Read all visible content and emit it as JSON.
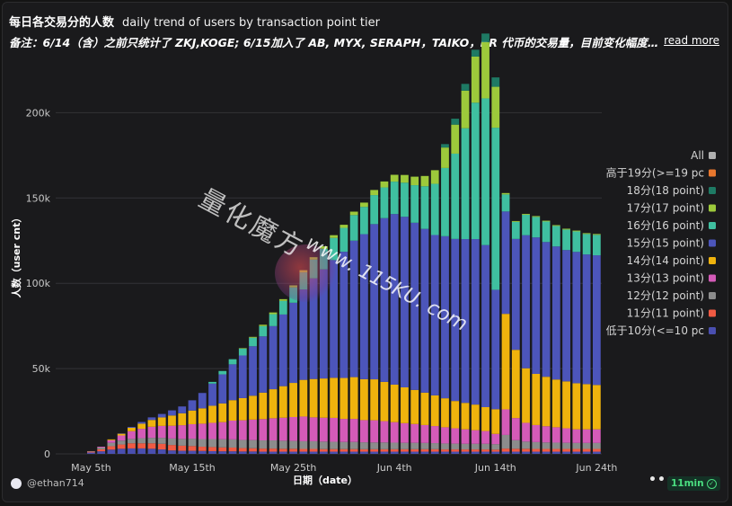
{
  "header": {
    "title": "每日各交易分的人数",
    "subtitle": "daily trend of users by transaction point tier",
    "note": "备注：6/14（含）之前只统计了 ZKJ,KOGE; 6/15加入了 AB, MYX, SERAPH，TAIKO，BR 代币的交易量，目前变化幅度较大，",
    "read_more": "read more"
  },
  "footer": {
    "user": "@ethan714",
    "more": "•••",
    "time_badge": "11min"
  },
  "watermark": {
    "cn": "量化魔方",
    "url": "www. 115KU. com"
  },
  "colors": {
    "background": "#1a1a1c",
    "grid": "#333336"
  },
  "chart_data": {
    "type": "bar",
    "stacked": true,
    "xlabel": "日期（date）",
    "ylabel": "人数（user cnt）",
    "ylim": [
      0,
      245000
    ],
    "yticks": [
      "0",
      "50k",
      "100k",
      "150k",
      "200k"
    ],
    "ytick_values": [
      0,
      50000,
      100000,
      150000,
      200000
    ],
    "categories": [
      "May 2",
      "May 3",
      "May 4",
      "May 5",
      "May 6",
      "May 7",
      "May 8",
      "May 9",
      "May 10",
      "May 11",
      "May 12",
      "May 13",
      "May 14",
      "May 15",
      "May 16",
      "May 17",
      "May 18",
      "May 19",
      "May 20",
      "May 21",
      "May 22",
      "May 23",
      "May 24",
      "May 25",
      "May 26",
      "May 27",
      "May 28",
      "May 29",
      "May 30",
      "May 31",
      "Jun 1",
      "Jun 2",
      "Jun 3",
      "Jun 4",
      "Jun 5",
      "Jun 6",
      "Jun 7",
      "Jun 8",
      "Jun 9",
      "Jun 10",
      "Jun 11",
      "Jun 12",
      "Jun 13",
      "Jun 14",
      "Jun 15",
      "Jun 16",
      "Jun 17",
      "Jun 18",
      "Jun 19",
      "Jun 20",
      "Jun 21",
      "Jun 22",
      "Jun 23",
      "Jun 24"
    ],
    "xtick_labels": [
      "May 5th",
      "May 15th",
      "May 25th",
      "Jun 4th",
      "Jun 14th",
      "Jun 24th"
    ],
    "xtick_categories": [
      "May 5",
      "May 15",
      "May 25",
      "Jun 4",
      "Jun 14",
      "Jun 24"
    ],
    "legend_position": "right",
    "legend": [
      "All",
      "高于19分(>=19 pc",
      "18分(18 point)",
      "17分(17 point)",
      "16分(16 point)",
      "15分(15 point)",
      "14分(14 point)",
      "13分(13 point)",
      "12分(12 point)",
      "11分(11 point)",
      "低于10分(<=10 pc"
    ],
    "legend_colors": [
      "#b0b0b0",
      "#e8772e",
      "#1e7a64",
      "#9dc93b",
      "#3fbfa0",
      "#4c55ba",
      "#efb30d",
      "#d45bb8",
      "#8c8c8c",
      "#f05a43",
      "#4a4fb0"
    ],
    "series": [
      {
        "name": "低于10分(<=10 pc",
        "color": "#4a4fb0",
        "values": [
          0,
          0,
          0,
          800,
          1500,
          2500,
          3000,
          3200,
          3200,
          3000,
          2600,
          2000,
          1800,
          1800,
          1700,
          1600,
          1500,
          1500,
          1400,
          1400,
          1300,
          1300,
          1300,
          1300,
          1300,
          1300,
          1300,
          1300,
          1300,
          1300,
          1300,
          1300,
          1300,
          1300,
          1300,
          1300,
          1300,
          1300,
          1300,
          1300,
          1300,
          1300,
          1300,
          1300,
          1300,
          1300,
          1300,
          1300,
          1300,
          1300,
          1300,
          1300,
          1300,
          1300
        ]
      },
      {
        "name": "11分(11 point)",
        "color": "#f05a43",
        "values": [
          0,
          0,
          0,
          500,
          1200,
          2000,
          2500,
          3000,
          3000,
          3200,
          3300,
          3200,
          3000,
          2800,
          2500,
          2400,
          2300,
          2200,
          2000,
          1900,
          1800,
          1800,
          1700,
          1700,
          1600,
          1600,
          1500,
          1500,
          1500,
          1500,
          1400,
          1400,
          1400,
          1400,
          1400,
          1400,
          1400,
          1400,
          1300,
          1300,
          1300,
          1300,
          1300,
          1200,
          1800,
          1700,
          1700,
          1600,
          1600,
          1600,
          1600,
          1600,
          1600,
          1600
        ]
      },
      {
        "name": "12分(12 point)",
        "color": "#8c8c8c",
        "values": [
          0,
          0,
          0,
          300,
          1000,
          2000,
          2300,
          2600,
          3000,
          3200,
          3500,
          3800,
          4000,
          4300,
          4500,
          4700,
          4800,
          4800,
          4800,
          4800,
          4800,
          4800,
          4700,
          4600,
          4500,
          4500,
          4400,
          4300,
          4200,
          4200,
          4100,
          4000,
          4000,
          3900,
          3800,
          3800,
          3700,
          3600,
          3500,
          3400,
          3300,
          3300,
          3300,
          3200,
          8000,
          5000,
          4200,
          4000,
          3800,
          3700,
          3600,
          3500,
          3500,
          3500
        ]
      },
      {
        "name": "13分(13 point)",
        "color": "#d45bb8",
        "values": [
          0,
          0,
          0,
          0,
          500,
          1500,
          3000,
          4500,
          5500,
          6500,
          7000,
          7500,
          8000,
          8500,
          9000,
          9500,
          10000,
          11000,
          11500,
          12000,
          12500,
          13000,
          13500,
          14000,
          14500,
          14000,
          14000,
          14000,
          13500,
          13500,
          13000,
          13000,
          12500,
          12000,
          11500,
          11000,
          10500,
          10000,
          9500,
          9000,
          8500,
          8000,
          7500,
          6000,
          15000,
          13000,
          11000,
          10000,
          9500,
          9000,
          8500,
          8000,
          8000,
          8000
        ]
      },
      {
        "name": "14分(14 point)",
        "color": "#efb30d",
        "values": [
          0,
          0,
          0,
          0,
          0,
          500,
          1000,
          2000,
          3000,
          4000,
          5000,
          6000,
          7000,
          8000,
          9000,
          10000,
          11000,
          12000,
          13000,
          14000,
          15500,
          17000,
          18500,
          20000,
          21500,
          22500,
          23000,
          23500,
          24000,
          24500,
          24000,
          24000,
          23000,
          22000,
          21000,
          20000,
          19000,
          18000,
          17000,
          16000,
          15500,
          15000,
          14000,
          14500,
          56000,
          40000,
          32000,
          30000,
          29000,
          28000,
          27500,
          27000,
          26500,
          26000
        ]
      },
      {
        "name": "15分(15 point)",
        "color": "#4c55ba",
        "values": [
          0,
          0,
          0,
          0,
          0,
          0,
          200,
          500,
          1000,
          1500,
          2000,
          3000,
          4000,
          6000,
          9000,
          13000,
          17000,
          21000,
          25000,
          29000,
          33000,
          37000,
          42000,
          47000,
          53000,
          59000,
          64000,
          69000,
          74000,
          80000,
          85000,
          91000,
          96000,
          100000,
          100000,
          98000,
          96000,
          94000,
          95000,
          95000,
          96000,
          97000,
          95000,
          70000,
          60000,
          65000,
          78000,
          80000,
          79000,
          78000,
          77000,
          77000,
          76000,
          76000
        ]
      },
      {
        "name": "16分(16 point)",
        "color": "#3fbfa0",
        "values": [
          0,
          0,
          0,
          0,
          0,
          0,
          0,
          0,
          0,
          0,
          0,
          0,
          0,
          0,
          0,
          1000,
          2000,
          3000,
          4000,
          5000,
          6000,
          7000,
          8000,
          9000,
          10000,
          11000,
          12000,
          13000,
          14000,
          15000,
          16000,
          17000,
          18000,
          19000,
          20000,
          22000,
          25000,
          30000,
          40000,
          50000,
          65000,
          80000,
          86000,
          95000,
          10000,
          10000,
          12000,
          12000,
          12000,
          12000,
          12000,
          12000,
          12000,
          12000
        ]
      },
      {
        "name": "17分(17 point)",
        "color": "#9dc93b",
        "values": [
          0,
          0,
          0,
          0,
          0,
          0,
          0,
          0,
          0,
          0,
          0,
          0,
          0,
          0,
          0,
          0,
          0,
          0,
          300,
          500,
          800,
          1000,
          1000,
          1200,
          1300,
          1400,
          1500,
          1600,
          1800,
          2000,
          2500,
          3000,
          3500,
          4000,
          4500,
          5000,
          6000,
          8000,
          12000,
          17000,
          22000,
          27000,
          33000,
          24000,
          800,
          500,
          500,
          500,
          500,
          500,
          500,
          500,
          500,
          500
        ]
      },
      {
        "name": "18分(18 point)",
        "color": "#1e7a64",
        "values": [
          0,
          0,
          0,
          0,
          0,
          0,
          0,
          0,
          0,
          0,
          0,
          0,
          0,
          0,
          0,
          0,
          0,
          0,
          0,
          0,
          0,
          0,
          0,
          0,
          0,
          0,
          0,
          0,
          0,
          0,
          0,
          0,
          0,
          0,
          0,
          0,
          0,
          0,
          2000,
          3500,
          4000,
          4000,
          5000,
          5500,
          0,
          0,
          0,
          0,
          0,
          0,
          0,
          0,
          0,
          0
        ]
      },
      {
        "name": "高于19分(>=19 pc",
        "color": "#e8772e",
        "values": [
          0,
          0,
          0,
          0,
          0,
          0,
          0,
          0,
          0,
          0,
          0,
          0,
          0,
          0,
          0,
          0,
          0,
          0,
          0,
          0,
          0,
          0,
          0,
          0,
          0,
          0,
          0,
          0,
          0,
          0,
          0,
          0,
          0,
          0,
          0,
          0,
          0,
          0,
          0,
          0,
          0,
          0,
          0,
          0,
          0,
          0,
          0,
          0,
          0,
          0,
          0,
          0,
          0,
          0
        ]
      },
      {
        "name": "All",
        "color": "#b0b0b0",
        "values": [
          0,
          0,
          0,
          0,
          0,
          0,
          0,
          0,
          0,
          0,
          0,
          0,
          0,
          0,
          0,
          0,
          0,
          0,
          0,
          0,
          0,
          0,
          0,
          0,
          0,
          0,
          0,
          0,
          0,
          0,
          0,
          0,
          0,
          0,
          0,
          0,
          0,
          0,
          0,
          0,
          0,
          0,
          0,
          0,
          0,
          0,
          0,
          0,
          0,
          0,
          0,
          0,
          0,
          0
        ]
      }
    ]
  }
}
